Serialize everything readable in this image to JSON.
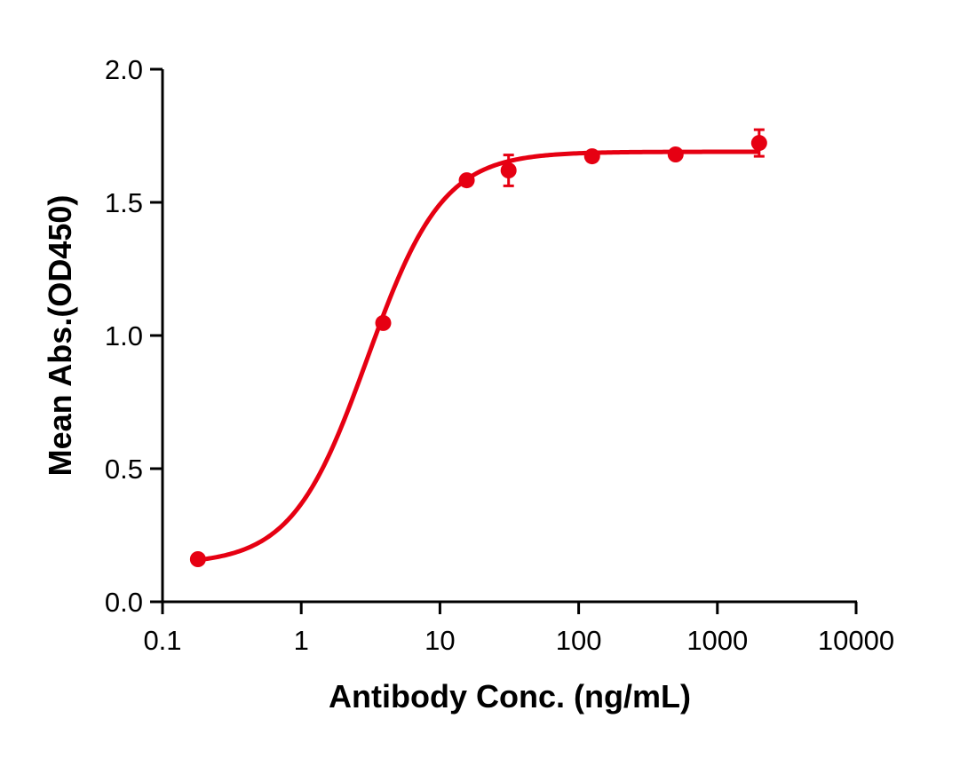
{
  "chart_data": {
    "type": "scatter",
    "title": "",
    "xlabel": "Antibody Conc. (ng/mL)",
    "ylabel": "Mean Abs.(OD450)",
    "xscale": "log",
    "xlim": [
      0.1,
      10000
    ],
    "ylim": [
      0,
      2.0
    ],
    "xticks": [
      "0.1",
      "1",
      "10",
      "100",
      "1000",
      "10000"
    ],
    "xtick_values": [
      0.1,
      1,
      10,
      100,
      1000,
      10000
    ],
    "yticks": [
      "0.0",
      "0.5",
      "1.0",
      "1.5",
      "2.0"
    ],
    "ytick_values": [
      0,
      0.5,
      1.0,
      1.5,
      2.0
    ],
    "grid": false,
    "color": "#e60012",
    "series": [
      {
        "x": [
          0.18,
          3.9,
          15.6,
          31.25,
          125,
          500,
          2000
        ],
        "y": [
          0.16,
          1.047,
          1.583,
          1.62,
          1.673,
          1.68,
          1.723
        ],
        "error": [
          0,
          0,
          0,
          0.058,
          0,
          0,
          0.05
        ]
      }
    ],
    "fit": {
      "model": "4PL",
      "bottom": 0.14,
      "top": 1.69,
      "ec50": 3.0,
      "hill": 1.6
    }
  }
}
